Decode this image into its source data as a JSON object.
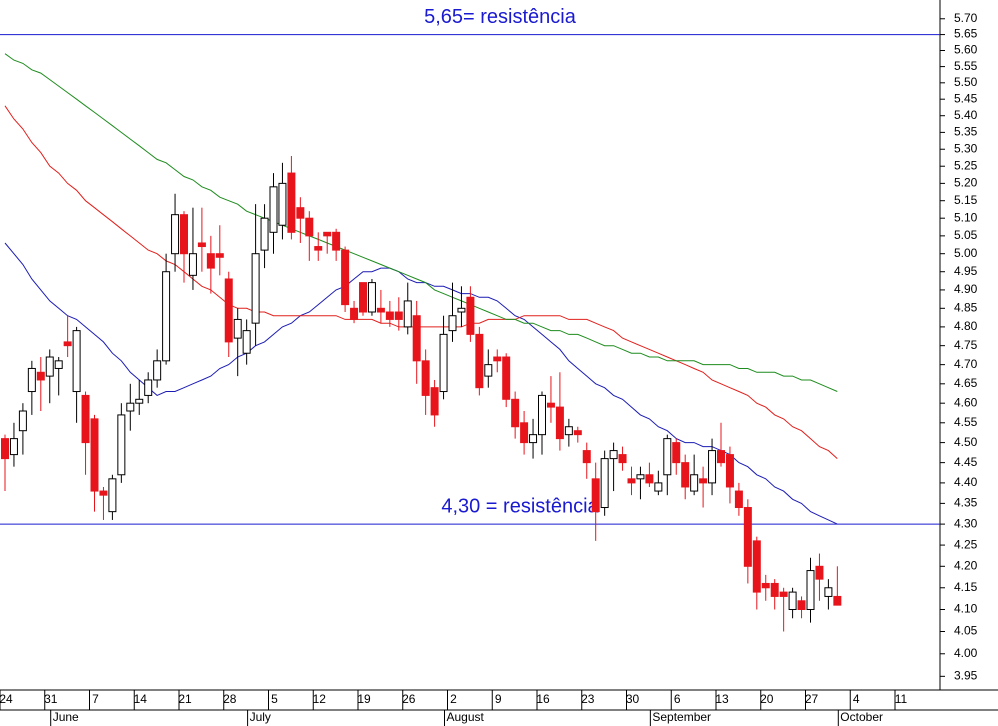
{
  "chart_data": {
    "type": "candlestick",
    "ylog": true,
    "ylim": [
      3.92,
      5.76
    ],
    "yticks": [
      3.95,
      {
        "value": 4.0,
        "label": "4.00"
      },
      4.05,
      {
        "value": 4.1,
        "label": "4.10"
      },
      4.15,
      {
        "value": 4.2,
        "label": "4.20"
      },
      4.25,
      {
        "value": 4.3,
        "label": "4.30"
      },
      4.35,
      {
        "value": 4.4,
        "label": "4.40"
      },
      4.45,
      {
        "value": 4.5,
        "label": "4.50"
      },
      4.55,
      {
        "value": 4.6,
        "label": "4.60"
      },
      4.65,
      {
        "value": 4.7,
        "label": "4.70"
      },
      4.75,
      {
        "value": 4.8,
        "label": "4.80"
      },
      4.85,
      {
        "value": 4.9,
        "label": "4.90"
      },
      4.95,
      {
        "value": 5.0,
        "label": "5.00"
      },
      5.05,
      {
        "value": 5.1,
        "label": "5.10"
      },
      5.15,
      {
        "value": 5.2,
        "label": "5.20"
      },
      5.25,
      {
        "value": 5.3,
        "label": "5.30"
      },
      5.35,
      {
        "value": 5.4,
        "label": "5.40"
      },
      5.45,
      {
        "value": 5.5,
        "label": "5.50"
      },
      5.55,
      {
        "value": 5.6,
        "label": "5.60"
      },
      5.65,
      {
        "value": 5.7,
        "label": "5.70"
      }
    ],
    "up_color": "#ffffff",
    "down_color": "#e8141c",
    "categories": [
      "24",
      null,
      null,
      null,
      null,
      "31",
      null,
      null,
      null,
      null,
      "7",
      null,
      null,
      null,
      null,
      "14",
      null,
      null,
      null,
      null,
      "21",
      null,
      null,
      null,
      null,
      "28",
      null,
      null,
      null,
      null,
      "5",
      null,
      null,
      null,
      null,
      "12",
      null,
      null,
      null,
      null,
      "19",
      null,
      null,
      null,
      null,
      "26",
      null,
      null,
      null,
      null,
      "2",
      null,
      null,
      null,
      null,
      "9",
      null,
      null,
      null,
      null,
      "16",
      null,
      null,
      null,
      null,
      "23",
      null,
      null,
      null,
      null,
      "30",
      null,
      null,
      null,
      null,
      "6",
      null,
      null,
      null,
      null,
      "13",
      null,
      null,
      null,
      null,
      "20",
      null,
      null,
      null,
      null,
      "27",
      null,
      null,
      null,
      null,
      "4",
      null,
      null,
      null,
      null,
      "11",
      null,
      null,
      null,
      null
    ],
    "months": [
      null,
      null,
      null,
      null,
      null,
      null,
      "June",
      null,
      null,
      null,
      null,
      null,
      null,
      null,
      null,
      null,
      null,
      null,
      null,
      null,
      null,
      null,
      null,
      null,
      null,
      null,
      null,
      null,
      "July",
      null,
      null,
      null,
      null,
      null,
      null,
      null,
      null,
      null,
      null,
      null,
      null,
      null,
      null,
      null,
      null,
      null,
      null,
      null,
      null,
      null,
      "August",
      null,
      null,
      null,
      null,
      null,
      null,
      null,
      null,
      null,
      null,
      null,
      null,
      null,
      null,
      null,
      null,
      null,
      null,
      null,
      null,
      null,
      null,
      "September",
      null,
      null,
      null,
      null,
      null,
      null,
      null,
      null,
      null,
      null,
      null,
      null,
      null,
      null,
      null,
      null,
      null,
      null,
      null,
      null,
      "October",
      null,
      null,
      null,
      null,
      null,
      null,
      null,
      null,
      null,
      null
    ],
    "open": [
      4.51,
      4.47,
      4.53,
      4.63,
      4.68,
      4.67,
      4.69,
      4.76,
      4.63,
      4.62,
      4.56,
      4.38,
      4.33,
      4.42,
      4.58,
      4.6,
      4.62,
      4.66,
      4.71,
      5.0,
      5.11,
      4.94,
      5.03,
      5.0,
      5.0,
      4.93,
      4.77,
      4.73,
      4.81,
      5.01,
      5.06,
      5.08,
      5.23,
      5.13,
      5.1,
      5.02,
      5.06,
      5.06,
      5.01,
      4.85,
      4.92,
      4.84,
      4.85,
      4.84,
      4.84,
      4.8,
      4.83,
      4.71,
      4.64,
      4.63,
      4.79,
      4.84,
      4.88,
      4.78,
      4.67,
      4.72,
      4.72,
      4.61,
      4.55,
      4.5,
      4.52,
      4.6,
      4.59,
      4.52,
      4.53,
      4.48,
      4.41,
      4.34,
      4.46,
      4.47,
      4.41,
      4.41,
      4.42,
      4.38,
      4.42,
      4.5,
      4.45,
      4.38,
      4.41,
      4.4,
      4.48,
      4.47,
      4.38,
      4.34,
      4.26,
      4.16,
      4.16,
      4.14,
      4.1,
      4.12,
      4.1,
      4.2,
      4.13,
      4.13,
      null,
      null,
      null,
      null,
      null,
      null,
      null,
      null,
      null,
      null,
      null
    ],
    "high": [
      4.52,
      4.55,
      4.6,
      4.71,
      4.72,
      4.74,
      4.72,
      4.83,
      4.8,
      4.63,
      4.57,
      4.39,
      4.42,
      4.6,
      4.65,
      4.66,
      4.68,
      4.74,
      5.0,
      5.17,
      5.12,
      5.13,
      5.13,
      5.05,
      5.08,
      4.95,
      4.85,
      4.82,
      5.14,
      5.14,
      5.23,
      5.26,
      5.28,
      5.16,
      5.12,
      5.06,
      5.06,
      5.07,
      5.02,
      4.87,
      4.92,
      4.93,
      4.9,
      4.87,
      4.88,
      4.92,
      4.87,
      4.74,
      4.66,
      4.83,
      4.92,
      4.91,
      4.91,
      4.8,
      4.74,
      4.74,
      4.73,
      4.63,
      4.58,
      4.56,
      4.63,
      4.67,
      4.68,
      4.56,
      4.54,
      4.5,
      4.45,
      4.48,
      4.5,
      4.49,
      4.44,
      4.44,
      4.45,
      4.43,
      4.52,
      4.51,
      4.47,
      4.47,
      4.44,
      4.51,
      4.55,
      4.49,
      4.4,
      4.36,
      4.27,
      4.18,
      4.17,
      4.15,
      4.15,
      4.13,
      4.22,
      4.23,
      4.17,
      4.2,
      null,
      null,
      null,
      null,
      null,
      null,
      null,
      null,
      null,
      null,
      null
    ],
    "low": [
      4.38,
      4.44,
      4.47,
      4.57,
      4.58,
      4.6,
      4.62,
      4.72,
      4.55,
      4.42,
      4.33,
      4.31,
      4.31,
      4.4,
      4.53,
      4.57,
      4.6,
      4.64,
      4.7,
      4.95,
      4.92,
      4.9,
      4.95,
      4.89,
      4.94,
      4.72,
      4.67,
      4.7,
      4.75,
      4.96,
      5.0,
      5.04,
      5.04,
      5.03,
      4.98,
      4.98,
      5.0,
      4.98,
      4.84,
      4.81,
      4.83,
      4.83,
      4.81,
      4.8,
      4.79,
      4.78,
      4.65,
      4.57,
      4.54,
      4.61,
      4.76,
      4.8,
      4.76,
      4.62,
      4.64,
      4.68,
      4.59,
      4.51,
      4.47,
      4.46,
      4.47,
      4.55,
      4.48,
      4.49,
      4.5,
      4.41,
      4.26,
      4.32,
      4.38,
      4.43,
      4.37,
      4.36,
      4.39,
      4.37,
      4.37,
      4.42,
      4.36,
      4.37,
      4.34,
      4.37,
      4.44,
      4.35,
      4.32,
      4.16,
      4.1,
      4.12,
      4.1,
      4.05,
      4.08,
      4.08,
      4.07,
      4.12,
      4.1,
      4.11,
      null,
      null,
      null,
      null,
      null,
      null,
      null,
      null,
      null,
      null,
      null
    ],
    "close": [
      4.46,
      4.51,
      4.58,
      4.69,
      4.66,
      4.72,
      4.71,
      4.75,
      4.79,
      4.5,
      4.38,
      4.37,
      4.41,
      4.57,
      4.6,
      4.61,
      4.66,
      4.71,
      4.95,
      5.11,
      5.0,
      5.0,
      5.02,
      4.96,
      4.99,
      4.76,
      4.82,
      4.79,
      5.0,
      5.1,
      5.19,
      5.2,
      5.06,
      5.1,
      5.05,
      5.01,
      5.05,
      5.01,
      4.86,
      4.82,
      4.84,
      4.92,
      4.84,
      4.82,
      4.82,
      4.87,
      4.71,
      4.62,
      4.57,
      4.78,
      4.83,
      4.85,
      4.78,
      4.64,
      4.7,
      4.71,
      4.61,
      4.54,
      4.5,
      4.52,
      4.62,
      4.59,
      4.51,
      4.54,
      4.52,
      4.45,
      4.33,
      4.46,
      4.48,
      4.45,
      4.4,
      4.42,
      4.4,
      4.4,
      4.51,
      4.45,
      4.39,
      4.42,
      4.4,
      4.48,
      4.45,
      4.39,
      4.34,
      4.2,
      4.14,
      4.15,
      4.13,
      4.13,
      4.14,
      4.1,
      4.19,
      4.17,
      4.15,
      4.11,
      null,
      null,
      null,
      null,
      null,
      null,
      null,
      null,
      null,
      null,
      null
    ],
    "moving_averages": [
      {
        "color": "#1c1cb4",
        "values": [
          5.03,
          5.0,
          4.97,
          4.93,
          4.9,
          4.87,
          4.85,
          4.83,
          4.82,
          4.8,
          4.78,
          4.76,
          4.73,
          4.71,
          4.68,
          4.66,
          4.64,
          4.62,
          4.63,
          4.63,
          4.64,
          4.65,
          4.66,
          4.67,
          4.69,
          4.7,
          4.72,
          4.73,
          4.75,
          4.76,
          4.78,
          4.8,
          4.81,
          4.83,
          4.84,
          4.86,
          4.88,
          4.9,
          4.91,
          4.93,
          4.95,
          4.95,
          4.96,
          4.96,
          4.95,
          4.93,
          4.92,
          4.92,
          4.91,
          4.91,
          4.9,
          4.89,
          4.89,
          4.88,
          4.88,
          4.87,
          4.85,
          4.83,
          4.82,
          4.8,
          4.78,
          4.76,
          4.74,
          4.71,
          4.69,
          4.67,
          4.65,
          4.64,
          4.62,
          4.61,
          4.59,
          4.57,
          4.56,
          4.54,
          4.53,
          4.51,
          4.5,
          4.5,
          4.49,
          4.49,
          4.48,
          4.47,
          4.45,
          4.44,
          4.42,
          4.41,
          4.39,
          4.38,
          4.36,
          4.35,
          4.33,
          4.32,
          4.31,
          4.3,
          null,
          null,
          null,
          null,
          null,
          null,
          null,
          null,
          null,
          null,
          null
        ]
      },
      {
        "color": "#e0201c",
        "values": [
          5.43,
          5.39,
          5.36,
          5.32,
          5.29,
          5.25,
          5.23,
          5.2,
          5.18,
          5.15,
          5.13,
          5.11,
          5.09,
          5.07,
          5.05,
          5.03,
          5.01,
          5.0,
          4.98,
          4.97,
          4.95,
          4.93,
          4.91,
          4.9,
          4.88,
          4.86,
          4.85,
          4.85,
          4.84,
          4.84,
          4.83,
          4.83,
          4.83,
          4.83,
          4.83,
          4.83,
          4.83,
          4.83,
          4.82,
          4.82,
          4.82,
          4.82,
          4.81,
          4.81,
          4.8,
          4.8,
          4.8,
          4.8,
          4.8,
          4.8,
          4.8,
          4.8,
          4.81,
          4.81,
          4.82,
          4.82,
          4.82,
          4.82,
          4.83,
          4.83,
          4.83,
          4.83,
          4.83,
          4.82,
          4.82,
          4.82,
          4.81,
          4.8,
          4.79,
          4.77,
          4.76,
          4.75,
          4.74,
          4.73,
          4.72,
          4.71,
          4.7,
          4.69,
          4.68,
          4.66,
          4.65,
          4.64,
          4.63,
          4.62,
          4.6,
          4.59,
          4.57,
          4.56,
          4.54,
          4.53,
          4.51,
          4.49,
          4.48,
          4.46,
          null,
          null,
          null,
          null,
          null,
          null,
          null,
          null,
          null,
          null,
          null
        ]
      },
      {
        "color": "#1e8c1e",
        "values": [
          5.59,
          5.57,
          5.56,
          5.54,
          5.53,
          5.51,
          5.49,
          5.47,
          5.45,
          5.43,
          5.41,
          5.39,
          5.37,
          5.35,
          5.33,
          5.31,
          5.29,
          5.27,
          5.26,
          5.24,
          5.22,
          5.21,
          5.19,
          5.18,
          5.16,
          5.15,
          5.14,
          5.12,
          5.11,
          5.1,
          5.09,
          5.08,
          5.07,
          5.06,
          5.05,
          5.04,
          5.03,
          5.02,
          5.01,
          5.0,
          4.99,
          4.98,
          4.97,
          4.96,
          4.95,
          4.94,
          4.93,
          4.92,
          4.9,
          4.89,
          4.88,
          4.87,
          4.86,
          4.85,
          4.84,
          4.83,
          4.82,
          4.82,
          4.81,
          4.81,
          4.8,
          4.79,
          4.79,
          4.78,
          4.78,
          4.77,
          4.76,
          4.75,
          4.75,
          4.74,
          4.73,
          4.73,
          4.72,
          4.72,
          4.71,
          4.71,
          4.71,
          4.71,
          4.7,
          4.7,
          4.7,
          4.7,
          4.69,
          4.69,
          4.68,
          4.68,
          4.68,
          4.67,
          4.67,
          4.66,
          4.66,
          4.65,
          4.64,
          4.63,
          null,
          null,
          null,
          null,
          null,
          null,
          null,
          null,
          null,
          null,
          null
        ]
      }
    ],
    "hlines": [
      {
        "value": 5.65,
        "label": "5,65= resistência",
        "color": "#1a1ad0"
      },
      {
        "value": 4.3,
        "label": "4,30 = resistência",
        "color": "#1a1ad0"
      }
    ]
  }
}
